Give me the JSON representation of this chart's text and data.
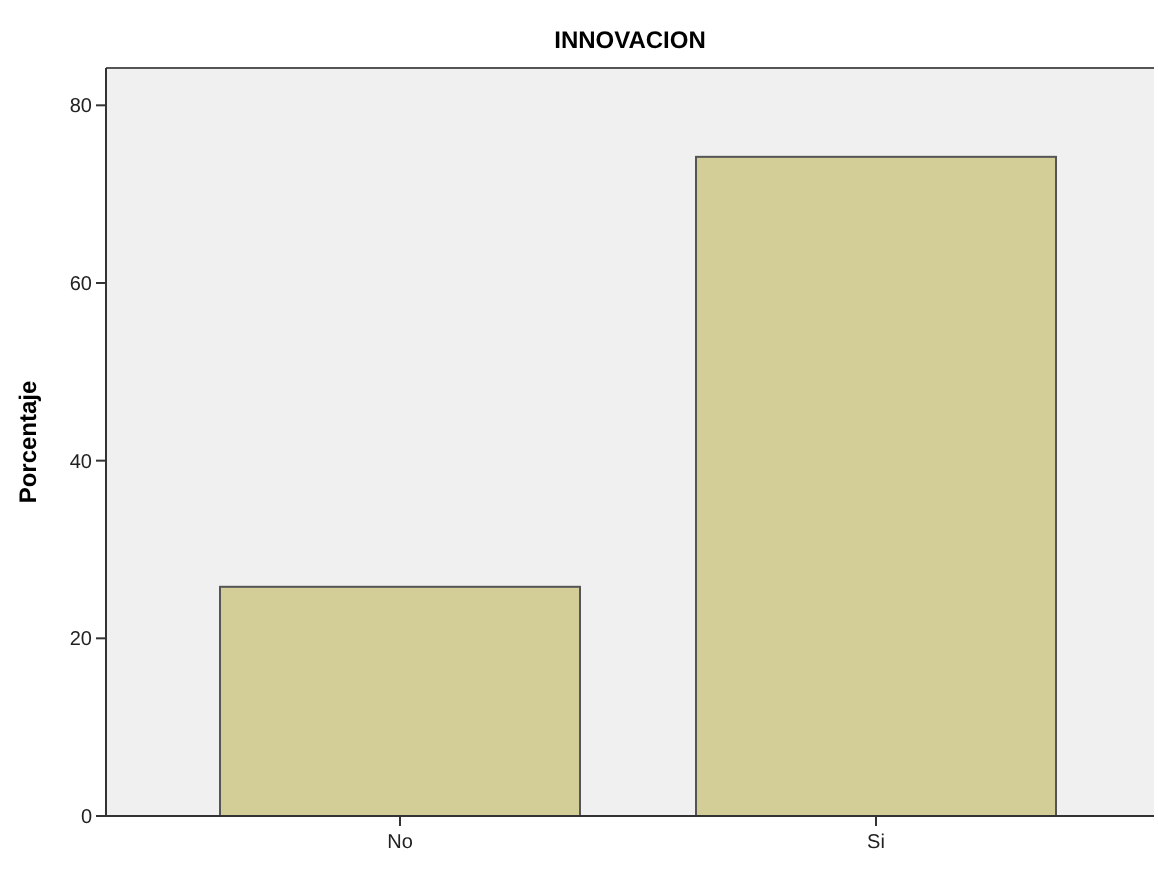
{
  "chart_data": {
    "type": "bar",
    "title": "INNOVACION",
    "ylabel": "Porcentaje",
    "categories": [
      "No",
      "Si"
    ],
    "values": [
      25.8,
      74.2
    ],
    "color": "#d3cd98",
    "ylim": [
      0,
      84.2
    ],
    "yticks": [
      0,
      20,
      40,
      60,
      80
    ],
    "grid": false
  }
}
